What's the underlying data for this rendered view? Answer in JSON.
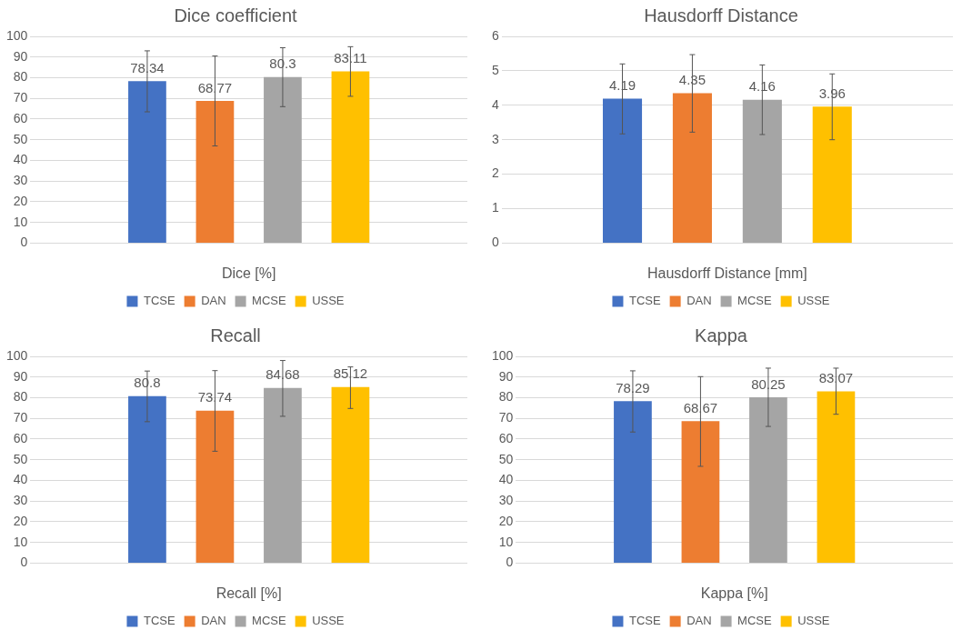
{
  "chart_data": [
    {
      "type": "bar",
      "title": "Dice coefficient",
      "xlabel": "Dice [%]",
      "categories": [
        null
      ],
      "ylim": [
        0,
        100
      ],
      "yticks": [
        0,
        10,
        20,
        30,
        40,
        50,
        60,
        70,
        80,
        90,
        100
      ],
      "grid": "y",
      "legend": "bottom",
      "data_labels": true,
      "series": [
        {
          "name": "TCSE",
          "color": "#4472c4",
          "values": [
            78.34
          ],
          "errors": [
            [
              63.5,
              93
            ]
          ]
        },
        {
          "name": "DAN",
          "color": "#ed7d31",
          "values": [
            68.77
          ],
          "errors": [
            [
              47,
              90.5
            ]
          ]
        },
        {
          "name": "MCSE",
          "color": "#a5a5a5",
          "values": [
            80.3
          ],
          "errors": [
            [
              66,
              94.5
            ]
          ]
        },
        {
          "name": "USSE",
          "color": "#ffc000",
          "values": [
            83.11
          ],
          "errors": [
            [
              71,
              95
            ]
          ]
        }
      ]
    },
    {
      "type": "bar",
      "title": "Hausdorff Distance",
      "xlabel": "Hausdorff Distance [mm]",
      "categories": [
        null
      ],
      "ylim": [
        0,
        6
      ],
      "yticks": [
        0,
        1,
        2,
        3,
        4,
        5,
        6
      ],
      "grid": "y",
      "legend": "bottom",
      "data_labels": true,
      "series": [
        {
          "name": "TCSE",
          "color": "#4472c4",
          "values": [
            4.19
          ],
          "errors": [
            [
              3.17,
              5.2
            ]
          ]
        },
        {
          "name": "DAN",
          "color": "#ed7d31",
          "values": [
            4.35
          ],
          "errors": [
            [
              3.22,
              5.47
            ]
          ]
        },
        {
          "name": "MCSE",
          "color": "#a5a5a5",
          "values": [
            4.16
          ],
          "errors": [
            [
              3.15,
              5.17
            ]
          ]
        },
        {
          "name": "USSE",
          "color": "#ffc000",
          "values": [
            3.96
          ],
          "errors": [
            [
              3.0,
              4.91
            ]
          ]
        }
      ]
    },
    {
      "type": "bar",
      "title": "Recall",
      "xlabel": "Recall [%]",
      "categories": [
        null
      ],
      "ylim": [
        0,
        100
      ],
      "yticks": [
        0,
        10,
        20,
        30,
        40,
        50,
        60,
        70,
        80,
        90,
        100
      ],
      "grid": "y",
      "legend": "bottom",
      "data_labels": true,
      "series": [
        {
          "name": "TCSE",
          "color": "#4472c4",
          "values": [
            80.8
          ],
          "errors": [
            [
              68.4,
              92.9
            ]
          ]
        },
        {
          "name": "DAN",
          "color": "#ed7d31",
          "values": [
            73.74
          ],
          "errors": [
            [
              54.1,
              93.1
            ]
          ]
        },
        {
          "name": "MCSE",
          "color": "#a5a5a5",
          "values": [
            84.68
          ],
          "errors": [
            [
              71,
              98
            ]
          ]
        },
        {
          "name": "USSE",
          "color": "#ffc000",
          "values": [
            85.12
          ],
          "errors": [
            [
              74.8,
              94.9
            ]
          ]
        }
      ]
    },
    {
      "type": "bar",
      "title": "Kappa",
      "xlabel": "Kappa [%]",
      "categories": [
        null
      ],
      "ylim": [
        0,
        100
      ],
      "yticks": [
        0,
        10,
        20,
        30,
        40,
        50,
        60,
        70,
        80,
        90,
        100
      ],
      "grid": "y",
      "legend": "bottom",
      "data_labels": true,
      "series": [
        {
          "name": "TCSE",
          "color": "#4472c4",
          "values": [
            78.29
          ],
          "errors": [
            [
              63.4,
              93
            ]
          ]
        },
        {
          "name": "DAN",
          "color": "#ed7d31",
          "values": [
            68.67
          ],
          "errors": [
            [
              46.8,
              90.2
            ]
          ]
        },
        {
          "name": "MCSE",
          "color": "#a5a5a5",
          "values": [
            80.25
          ],
          "errors": [
            [
              66.1,
              94.3
            ]
          ]
        },
        {
          "name": "USSE",
          "color": "#ffc000",
          "values": [
            83.07
          ],
          "errors": [
            [
              72,
              94.3
            ]
          ]
        }
      ]
    }
  ]
}
